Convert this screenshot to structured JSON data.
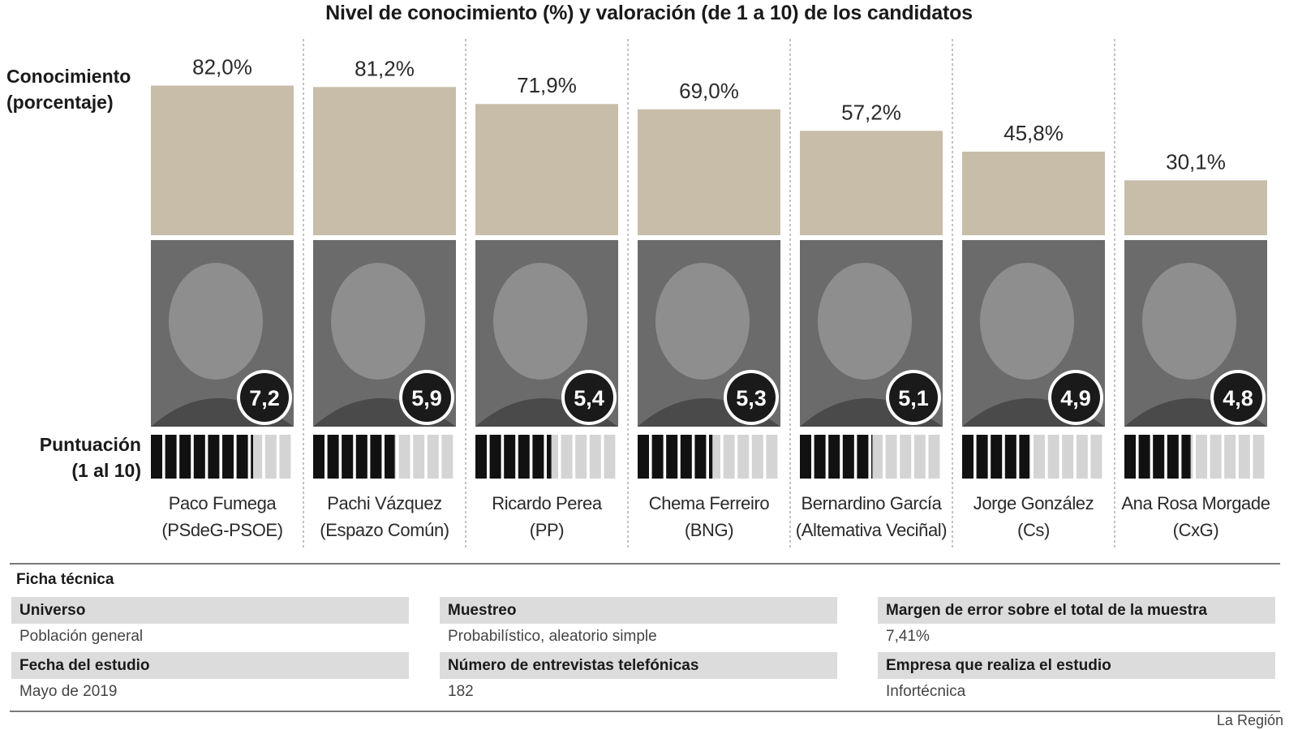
{
  "chart_data": {
    "type": "bar",
    "title": "Nivel de conocimiento (%) y valoración (de 1 a 10) de los candidatos",
    "ylabel": "Conocimiento\n(porcentaje)",
    "score_label": "Puntuación\n(1 al 10)",
    "ylim": [
      0,
      100
    ],
    "grid": false,
    "categories": [
      "Paco Fumega",
      "Pachi Vázquez",
      "Ricardo Perea",
      "Chema Ferreiro",
      "Bernardino García",
      "Jorge González",
      "Ana Rosa Morgade"
    ],
    "parties": [
      "(PSdeG-PSOE)",
      "(Espazo Común)",
      "(PP)",
      "(BNG)",
      "(Altemativa Veciñal)",
      "(Cs)",
      "(CxG)"
    ],
    "series": [
      {
        "values": [
          82.0,
          81.2,
          71.9,
          69.0,
          57.2,
          45.8,
          30.1
        ],
        "labels": [
          "82,0%",
          "81,2%",
          "71,9%",
          "69,0%",
          "57,2%",
          "45,8%",
          "30,1%"
        ]
      },
      {
        "values": [
          7.2,
          5.9,
          5.4,
          5.3,
          5.1,
          4.9,
          4.8
        ],
        "labels": [
          "7,2",
          "5,9",
          "5,4",
          "5,3",
          "5,1",
          "4,9",
          "4,8"
        ],
        "scale_max": 10
      }
    ]
  },
  "colors": {
    "bar": "#c8bda9",
    "photo_bg": "#6b6b6b",
    "score_dark": "#111111",
    "score_light": "#d4d4d4",
    "badge_bg": "#1a1a1a",
    "badge_ring": "#ffffff",
    "divider": "#9a9a9a"
  },
  "ficha": {
    "title": "Ficha técnica",
    "items": [
      {
        "label": "Universo",
        "value": "Población general"
      },
      {
        "label": "Muestreo",
        "value": "Probabilístico, aleatorio simple"
      },
      {
        "label": "Margen de error sobre el total de la muestra",
        "value": "7,41%"
      },
      {
        "label": "Fecha del estudio",
        "value": "Mayo de 2019"
      },
      {
        "label": "Número de entrevistas telefónicas",
        "value": "182"
      },
      {
        "label": "Empresa que realiza el estudio",
        "value": "Infortécnica"
      }
    ]
  },
  "source": "La Región"
}
